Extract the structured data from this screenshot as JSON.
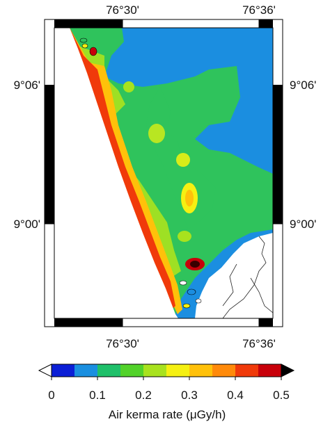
{
  "map": {
    "x_ticks": [
      "76°30'",
      "76°36'"
    ],
    "y_ticks": [
      "9°06'",
      "9°00'"
    ],
    "colors": {
      "land_base": "#1b8ee0",
      "water": "#ffffff",
      "frame": "#000000"
    }
  },
  "colorbar": {
    "label": "Air kerma rate (μGy/h)",
    "ticks": [
      "0",
      "0.1",
      "0.2",
      "0.3",
      "0.4",
      "0.5"
    ],
    "colors": [
      "#0b1fd6",
      "#1a8fe0",
      "#1fc06a",
      "#52d22a",
      "#a8e21e",
      "#f5f012",
      "#ffc10a",
      "#ff8a0a",
      "#f03a0a",
      "#c8000a"
    ],
    "min": 0,
    "max": 0.5,
    "steps": 10
  }
}
